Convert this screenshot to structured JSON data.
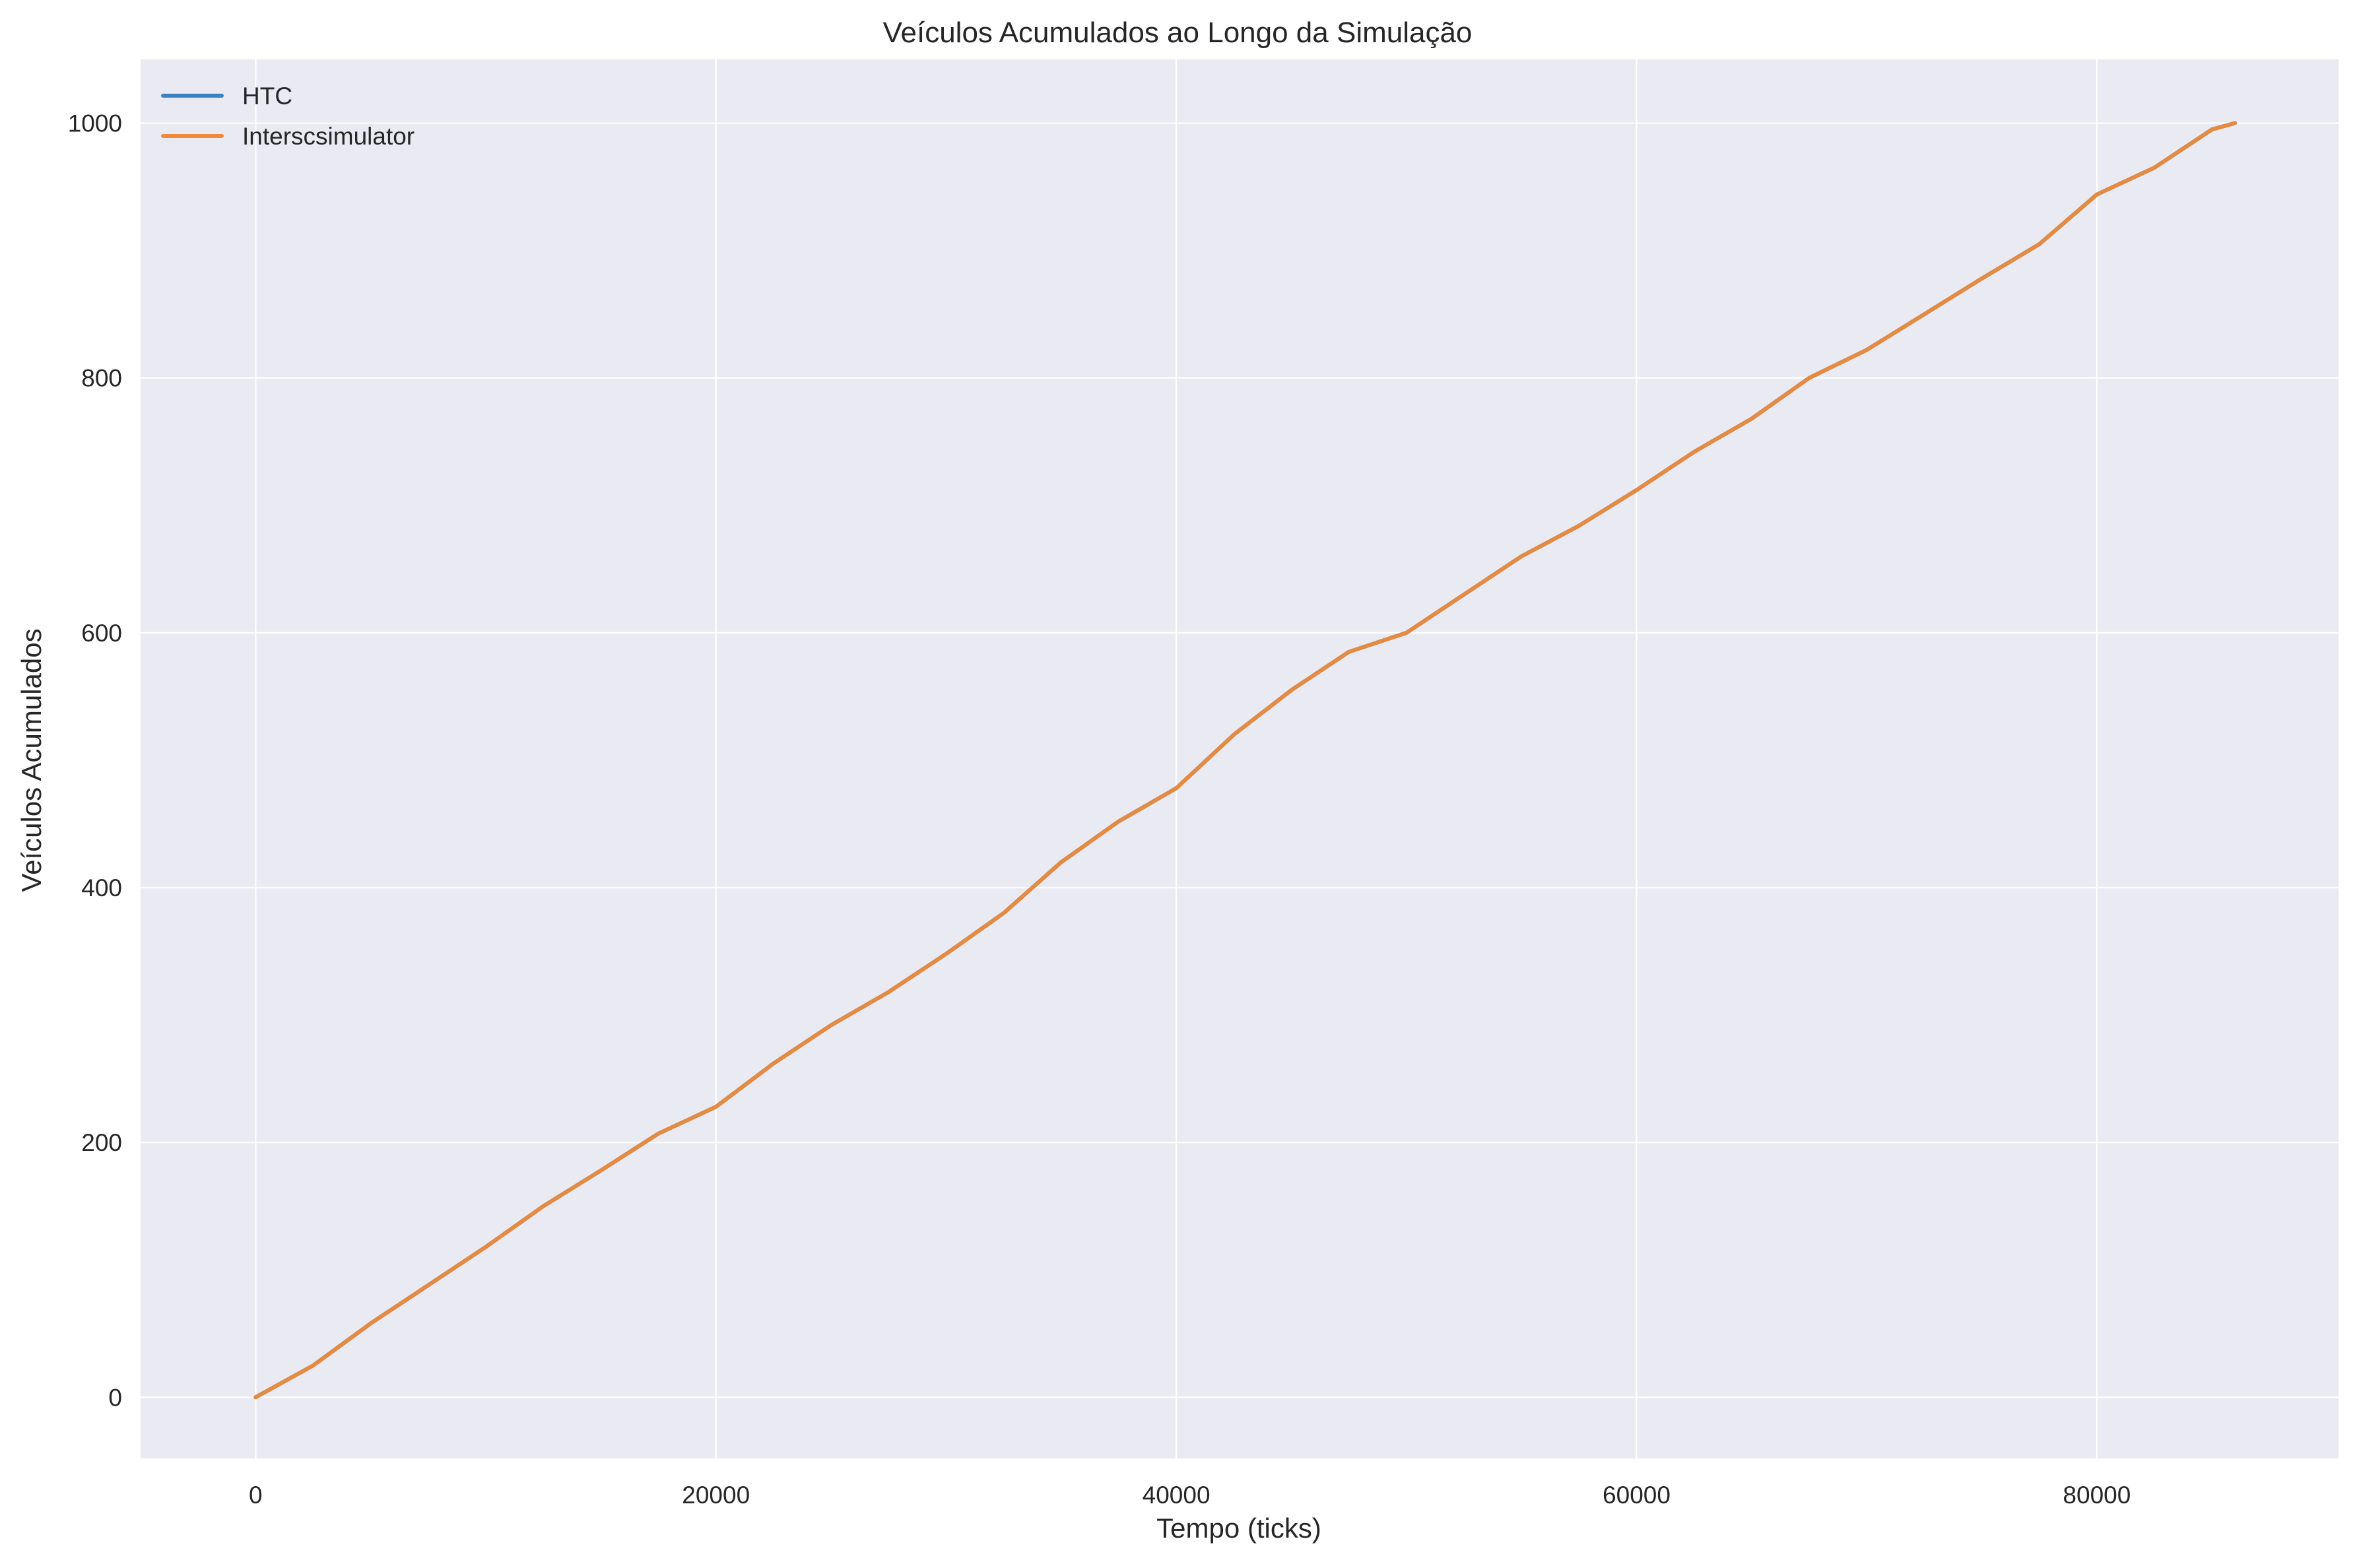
{
  "chart_data": {
    "type": "line",
    "title": "Veículos Acumulados ao Longo da Simulação",
    "xlabel": "Tempo (ticks)",
    "ylabel": "Veículos Acumulados",
    "xlim": [
      -5000,
      90500
    ],
    "ylim": [
      -48,
      1050
    ],
    "x_ticks": [
      0,
      20000,
      40000,
      60000,
      80000
    ],
    "x_tick_labels": [
      "0",
      "20000",
      "40000",
      "60000",
      "80000"
    ],
    "y_ticks": [
      0,
      200,
      400,
      600,
      800,
      1000
    ],
    "y_tick_labels": [
      "0",
      "200",
      "400",
      "600",
      "800",
      "1000"
    ],
    "grid": true,
    "legend_position": "top-left",
    "background_color": "#eaeaf2",
    "series": [
      {
        "name": "HTC",
        "color": "#3b82c4",
        "x": [
          0,
          2500,
          5000,
          7500,
          10000,
          12500,
          15000,
          17500,
          20000,
          22500,
          25000,
          27500,
          30000,
          32500,
          35000,
          37500,
          40000,
          42500,
          45000,
          47500,
          50000,
          52500,
          55000,
          57500,
          60000,
          62500,
          65000,
          67500,
          70000,
          72500,
          75000,
          77500,
          80000,
          82500,
          85000,
          86000
        ],
        "y": [
          0,
          25,
          58,
          88,
          118,
          150,
          178,
          207,
          228,
          262,
          292,
          318,
          348,
          380,
          420,
          452,
          478,
          520,
          555,
          585,
          600,
          630,
          660,
          684,
          712,
          742,
          768,
          800,
          822,
          850,
          878,
          905,
          944,
          965,
          995,
          1000
        ]
      },
      {
        "name": "Interscsimulator",
        "color": "#ee8a3a",
        "x": [
          0,
          2500,
          5000,
          7500,
          10000,
          12500,
          15000,
          17500,
          20000,
          22500,
          25000,
          27500,
          30000,
          32500,
          35000,
          37500,
          40000,
          42500,
          45000,
          47500,
          50000,
          52500,
          55000,
          57500,
          60000,
          62500,
          65000,
          67500,
          70000,
          72500,
          75000,
          77500,
          80000,
          82500,
          85000,
          86000
        ],
        "y": [
          0,
          25,
          58,
          88,
          118,
          150,
          178,
          207,
          228,
          262,
          292,
          318,
          348,
          380,
          420,
          452,
          478,
          520,
          555,
          585,
          600,
          630,
          660,
          684,
          712,
          742,
          768,
          800,
          822,
          850,
          878,
          905,
          944,
          965,
          995,
          1000
        ]
      }
    ]
  }
}
